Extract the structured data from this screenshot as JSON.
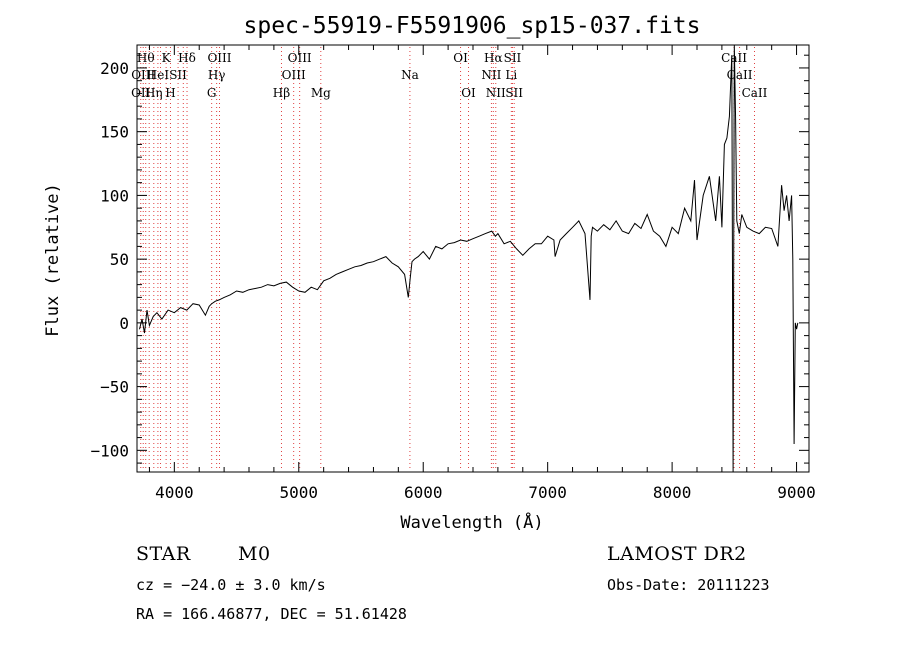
{
  "chart_data": {
    "type": "line",
    "title": "spec-55919-F5591906_sp15-037.fits",
    "xlabel": "Wavelength (Å)",
    "ylabel": "Flux (relative)",
    "xlim": [
      3700,
      9100
    ],
    "ylim": [
      -117,
      218
    ],
    "xticks": [
      4000,
      5000,
      6000,
      7000,
      8000,
      9000
    ],
    "yticks": [
      -100,
      -50,
      0,
      50,
      100,
      150,
      200
    ],
    "grid": false,
    "line_color": "#000000",
    "marker_color": "#e04040",
    "series": [
      {
        "x": [
          3720,
          3740,
          3760,
          3780,
          3800,
          3830,
          3860,
          3900,
          3950,
          4000,
          4050,
          4100,
          4150,
          4200,
          4250,
          4280,
          4300,
          4330,
          4360,
          4400,
          4450,
          4500,
          4550,
          4600,
          4650,
          4700,
          4750,
          4800,
          4850,
          4900,
          4950,
          5000,
          5050,
          5100,
          5150,
          5200,
          5250,
          5300,
          5350,
          5400,
          5450,
          5500,
          5550,
          5600,
          5650,
          5700,
          5750,
          5800,
          5850,
          5880,
          5895,
          5910,
          5930,
          5960,
          6000,
          6050,
          6100,
          6150,
          6200,
          6250,
          6300,
          6350,
          6400,
          6450,
          6500,
          6550,
          6580,
          6600,
          6650,
          6700,
          6750,
          6800,
          6850,
          6900,
          6950,
          7000,
          7050,
          7060,
          7100,
          7150,
          7200,
          7250,
          7300,
          7340,
          7350,
          7360,
          7400,
          7450,
          7500,
          7550,
          7600,
          7650,
          7700,
          7750,
          7800,
          7850,
          7900,
          7950,
          8000,
          8050,
          8100,
          8150,
          8180,
          8200,
          8250,
          8300,
          8350,
          8380,
          8400,
          8420,
          8440,
          8460,
          8480,
          8490,
          8500,
          8510,
          8520,
          8540,
          8560,
          8600,
          8650,
          8700,
          8750,
          8800,
          8850,
          8880,
          8900,
          8920,
          8940,
          8960,
          8970,
          8980,
          8990,
          9000,
          9010
        ],
        "y": [
          -5,
          3,
          -8,
          10,
          -2,
          5,
          8,
          3,
          10,
          8,
          12,
          10,
          15,
          14,
          6,
          13,
          15,
          17,
          18,
          20,
          22,
          25,
          24,
          26,
          27,
          28,
          30,
          29,
          31,
          32,
          28,
          25,
          24,
          28,
          26,
          33,
          35,
          38,
          40,
          42,
          44,
          45,
          47,
          48,
          50,
          52,
          47,
          44,
          38,
          20,
          35,
          48,
          50,
          52,
          56,
          50,
          60,
          58,
          62,
          63,
          65,
          64,
          66,
          68,
          70,
          72,
          68,
          70,
          62,
          64,
          58,
          53,
          58,
          62,
          62,
          68,
          65,
          52,
          65,
          70,
          75,
          80,
          70,
          18,
          68,
          75,
          72,
          77,
          73,
          80,
          72,
          70,
          78,
          74,
          85,
          72,
          68,
          60,
          75,
          70,
          90,
          80,
          112,
          65,
          100,
          115,
          80,
          115,
          75,
          140,
          145,
          162,
          210,
          -120,
          220,
          160,
          80,
          70,
          85,
          75,
          72,
          70,
          75,
          74,
          60,
          108,
          88,
          100,
          80,
          100,
          50,
          -95,
          0,
          -5,
          0
        ]
      }
    ],
    "lines": [
      {
        "x": 3730,
        "label": "OII",
        "row": 2
      },
      {
        "x": 3750,
        "label": "OIII",
        "row": 1
      },
      {
        "x": 3770,
        "label": "Hθ",
        "row": 0
      },
      {
        "x": 3798,
        "label": "",
        "row": 0
      },
      {
        "x": 3835,
        "label": "Hη",
        "row": 2
      },
      {
        "x": 3868,
        "label": "HeI",
        "row": 1
      },
      {
        "x": 3889,
        "label": "",
        "row": 0
      },
      {
        "x": 3934,
        "label": "K",
        "row": 0
      },
      {
        "x": 3969,
        "label": "H",
        "row": 2
      },
      {
        "x": 4030,
        "label": "SII",
        "row": 1
      },
      {
        "x": 4072,
        "label": "",
        "row": 1
      },
      {
        "x": 4102,
        "label": "Hδ",
        "row": 0
      },
      {
        "x": 4300,
        "label": "G",
        "row": 2
      },
      {
        "x": 4340,
        "label": "Hγ",
        "row": 1
      },
      {
        "x": 4363,
        "label": "OIII",
        "row": 0
      },
      {
        "x": 4861,
        "label": "Hβ",
        "row": 2
      },
      {
        "x": 4959,
        "label": "OIII",
        "row": 1
      },
      {
        "x": 5007,
        "label": "OIII",
        "row": 0
      },
      {
        "x": 5177,
        "label": "Mg",
        "row": 2
      },
      {
        "x": 5893,
        "label": "Na",
        "row": 1
      },
      {
        "x": 6300,
        "label": "OI",
        "row": 0
      },
      {
        "x": 6364,
        "label": "OI",
        "row": 2
      },
      {
        "x": 6548,
        "label": "NII",
        "row": 1
      },
      {
        "x": 6563,
        "label": "Hα",
        "row": 0
      },
      {
        "x": 6583,
        "label": "NII",
        "row": 2
      },
      {
        "x": 6708,
        "label": "Li",
        "row": 1
      },
      {
        "x": 6717,
        "label": "SII",
        "row": 0
      },
      {
        "x": 6731,
        "label": "SII",
        "row": 2
      },
      {
        "x": 8498,
        "label": "CaII",
        "row": 0
      },
      {
        "x": 8542,
        "label": "CaII",
        "row": 1
      },
      {
        "x": 8662,
        "label": "CaII",
        "row": 2
      }
    ]
  },
  "info": {
    "class_label": "STAR",
    "subclass": "M0",
    "survey": "LAMOST DR2",
    "redshift_text": "cz = −24.0 ± 3.0 km/s",
    "obs_date_text": "Obs-Date: 20111223",
    "coords_text": "RA = 166.46877, DEC =  51.61428"
  }
}
